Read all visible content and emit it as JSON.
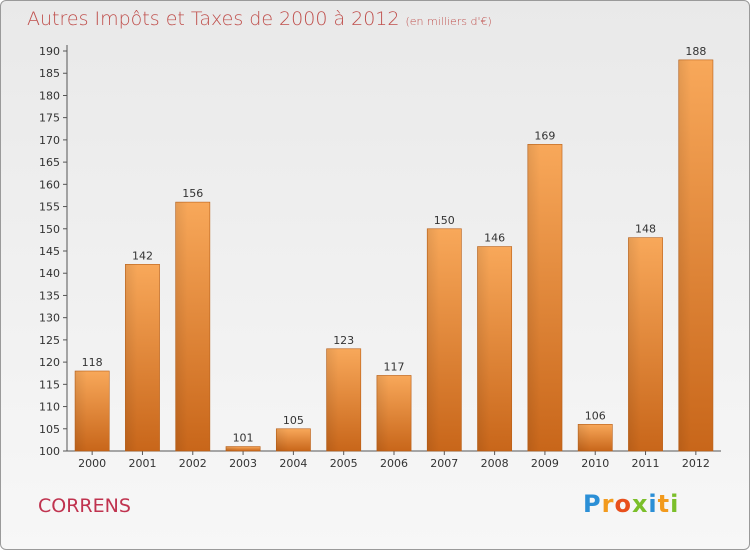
{
  "chart_data": {
    "type": "bar",
    "title": "Autres Impôts et Taxes de 2000 à 2012",
    "subtitle": "(en milliers d'€)",
    "categories": [
      "2000",
      "2001",
      "2002",
      "2003",
      "2004",
      "2005",
      "2006",
      "2007",
      "2008",
      "2009",
      "2010",
      "2011",
      "2012"
    ],
    "values": [
      118,
      142,
      156,
      101,
      105,
      123,
      117,
      150,
      146,
      169,
      106,
      148,
      188
    ],
    "ylim": [
      100,
      190
    ],
    "ytick_step": 5,
    "grid": false,
    "bar_color": "#f0903a",
    "xlabel": "",
    "ylabel": ""
  },
  "footer": {
    "city": "CORRENS",
    "logo": {
      "letters": [
        "P",
        "r",
        "o",
        "x",
        "i",
        "t",
        "i"
      ],
      "colors": [
        "#2b8fd6",
        "#f29a1d",
        "#e84f1c",
        "#7bbf2a",
        "#2b8fd6",
        "#f29a1d",
        "#7bbf2a"
      ]
    }
  }
}
